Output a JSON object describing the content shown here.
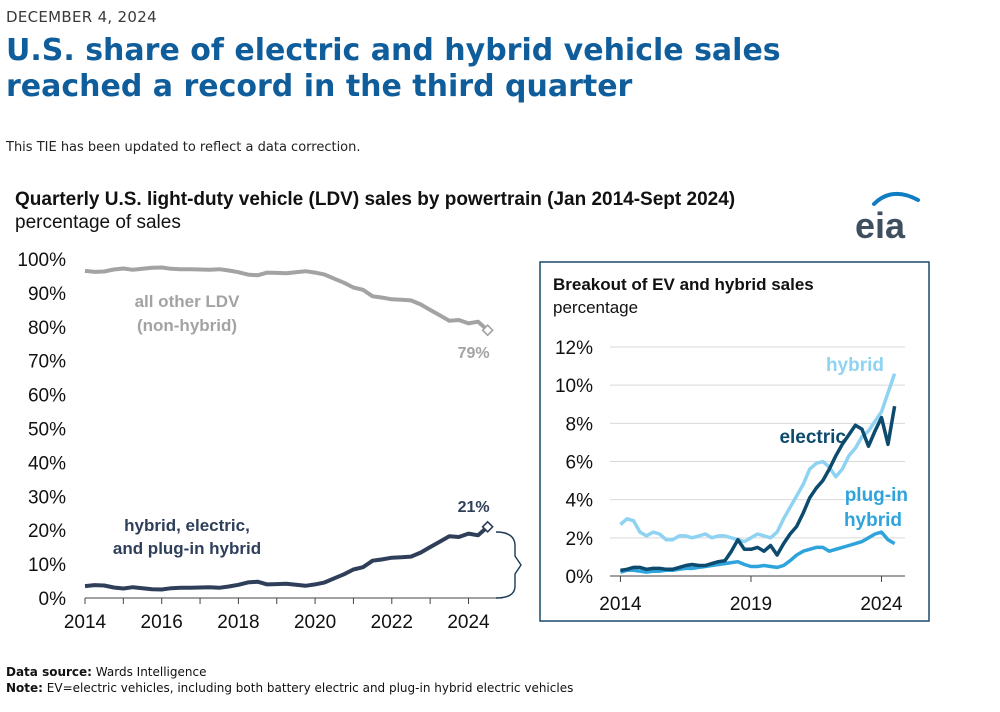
{
  "header": {
    "date": "DECEMBER 4, 2024",
    "headline": "U.S. share of electric and hybrid vehicle sales reached a record in the third quarter",
    "note": "This TIE has been updated to reflect a data correction."
  },
  "logo": {
    "text": "eia",
    "icon": "eia-logo"
  },
  "colors": {
    "gray_line": "#a3a3a3",
    "navy_line": "#2f3f59",
    "electric": "#0c4a6e",
    "hybrid": "#8fd3f2",
    "plugin": "#2fa4dc",
    "grid": "#d9d9d9",
    "headline": "#0f5d9a",
    "inset_border": "#1a4a6a"
  },
  "chart_data": [
    {
      "type": "line",
      "title": "Quarterly U.S. light-duty vehicle (LDV) sales by powertrain (Jan 2014-Sept 2024)",
      "ylabel": "percentage of sales",
      "xlabel": "",
      "xlim": [
        2014,
        2024.9
      ],
      "ylim": [
        0,
        100
      ],
      "y_ticks": [
        "0%",
        "10%",
        "20%",
        "30%",
        "40%",
        "50%",
        "60%",
        "70%",
        "80%",
        "90%",
        "100%"
      ],
      "x_ticks": [
        "2014",
        "2016",
        "2018",
        "2020",
        "2022",
        "2024"
      ],
      "grid": false,
      "series": [
        {
          "name": "all other LDV (non-hybrid)",
          "label_lines": [
            "all other LDV",
            "(non-hybrid)"
          ],
          "end_label": "79%",
          "x": [
            2014.0,
            2014.25,
            2014.5,
            2014.75,
            2015.0,
            2015.25,
            2015.5,
            2015.75,
            2016.0,
            2016.25,
            2016.5,
            2016.75,
            2017.0,
            2017.25,
            2017.5,
            2017.75,
            2018.0,
            2018.25,
            2018.5,
            2018.75,
            2019.0,
            2019.25,
            2019.5,
            2019.75,
            2020.0,
            2020.25,
            2020.5,
            2020.75,
            2021.0,
            2021.25,
            2021.5,
            2021.75,
            2022.0,
            2022.25,
            2022.5,
            2022.75,
            2023.0,
            2023.25,
            2023.5,
            2023.75,
            2024.0,
            2024.25,
            2024.5
          ],
          "values": [
            96.5,
            96.2,
            96.3,
            96.9,
            97.2,
            96.8,
            97.1,
            97.4,
            97.5,
            97.1,
            97.0,
            97.0,
            96.9,
            96.8,
            97.0,
            96.6,
            96.1,
            95.4,
            95.2,
            96.0,
            95.9,
            95.8,
            96.1,
            96.4,
            96.0,
            95.4,
            94.2,
            93.0,
            91.6,
            90.9,
            89.0,
            88.6,
            88.1,
            88.0,
            87.8,
            86.6,
            85.0,
            83.4,
            81.8,
            82.0,
            81.0,
            81.5,
            79.0
          ]
        },
        {
          "name": "hybrid, electric, and plug-in hybrid",
          "label_lines": [
            "hybrid, electric,",
            "and plug-in hybrid"
          ],
          "end_label": "21%",
          "x": [
            2014.0,
            2014.25,
            2014.5,
            2014.75,
            2015.0,
            2015.25,
            2015.5,
            2015.75,
            2016.0,
            2016.25,
            2016.5,
            2016.75,
            2017.0,
            2017.25,
            2017.5,
            2017.75,
            2018.0,
            2018.25,
            2018.5,
            2018.75,
            2019.0,
            2019.25,
            2019.5,
            2019.75,
            2020.0,
            2020.25,
            2020.5,
            2020.75,
            2021.0,
            2021.25,
            2021.5,
            2021.75,
            2022.0,
            2022.25,
            2022.5,
            2022.75,
            2023.0,
            2023.25,
            2023.5,
            2023.75,
            2024.0,
            2024.25,
            2024.5
          ],
          "values": [
            3.5,
            3.8,
            3.7,
            3.1,
            2.8,
            3.2,
            2.9,
            2.6,
            2.5,
            2.9,
            3.0,
            3.0,
            3.1,
            3.2,
            3.0,
            3.4,
            3.9,
            4.6,
            4.8,
            4.0,
            4.1,
            4.2,
            3.9,
            3.6,
            4.0,
            4.6,
            5.8,
            7.0,
            8.4,
            9.1,
            11.0,
            11.4,
            11.9,
            12.0,
            12.2,
            13.4,
            15.0,
            16.6,
            18.2,
            18.0,
            19.0,
            18.5,
            21.0
          ]
        }
      ]
    },
    {
      "type": "line",
      "title": "Breakout of EV and hybrid sales",
      "ylabel": "percentage",
      "xlabel": "",
      "xlim": [
        2013.6,
        2024.9
      ],
      "ylim": [
        0,
        12
      ],
      "y_ticks": [
        "0%",
        "2%",
        "4%",
        "6%",
        "8%",
        "10%",
        "12%"
      ],
      "x_ticks": [
        "2014",
        "2019",
        "2024"
      ],
      "grid": true,
      "series": [
        {
          "name": "hybrid",
          "x": [
            2014.0,
            2014.25,
            2014.5,
            2014.75,
            2015.0,
            2015.25,
            2015.5,
            2015.75,
            2016.0,
            2016.25,
            2016.5,
            2016.75,
            2017.0,
            2017.25,
            2017.5,
            2017.75,
            2018.0,
            2018.25,
            2018.5,
            2018.75,
            2019.0,
            2019.25,
            2019.5,
            2019.75,
            2020.0,
            2020.25,
            2020.5,
            2020.75,
            2021.0,
            2021.25,
            2021.5,
            2021.75,
            2022.0,
            2022.25,
            2022.5,
            2022.75,
            2023.0,
            2023.25,
            2023.5,
            2023.75,
            2024.0,
            2024.25,
            2024.5
          ],
          "values": [
            2.7,
            3.0,
            2.9,
            2.3,
            2.1,
            2.3,
            2.2,
            1.9,
            1.9,
            2.1,
            2.1,
            2.0,
            2.1,
            2.2,
            2.0,
            2.1,
            2.1,
            2.0,
            1.9,
            1.8,
            2.0,
            2.2,
            2.1,
            2.0,
            2.3,
            3.0,
            3.6,
            4.2,
            4.8,
            5.6,
            5.9,
            6.0,
            5.7,
            5.2,
            5.6,
            6.3,
            6.7,
            7.3,
            7.6,
            8.1,
            8.6,
            9.6,
            10.6
          ]
        },
        {
          "name": "electric",
          "x": [
            2014.0,
            2014.25,
            2014.5,
            2014.75,
            2015.0,
            2015.25,
            2015.5,
            2015.75,
            2016.0,
            2016.25,
            2016.5,
            2016.75,
            2017.0,
            2017.25,
            2017.5,
            2017.75,
            2018.0,
            2018.25,
            2018.5,
            2018.75,
            2019.0,
            2019.25,
            2019.5,
            2019.75,
            2020.0,
            2020.25,
            2020.5,
            2020.75,
            2021.0,
            2021.25,
            2021.5,
            2021.75,
            2022.0,
            2022.25,
            2022.5,
            2022.75,
            2023.0,
            2023.25,
            2023.5,
            2023.75,
            2024.0,
            2024.25,
            2024.5
          ],
          "values": [
            0.3,
            0.35,
            0.45,
            0.45,
            0.35,
            0.4,
            0.4,
            0.35,
            0.35,
            0.45,
            0.55,
            0.6,
            0.55,
            0.55,
            0.65,
            0.75,
            0.8,
            1.3,
            1.9,
            1.4,
            1.4,
            1.5,
            1.3,
            1.6,
            1.1,
            1.7,
            2.2,
            2.6,
            3.3,
            4.1,
            4.6,
            5.0,
            5.6,
            6.3,
            6.9,
            7.4,
            7.9,
            7.7,
            6.8,
            7.6,
            8.3,
            6.9,
            8.9
          ]
        },
        {
          "name": "plug-in hybrid",
          "label_lines": [
            "plug-in",
            "hybrid"
          ],
          "x": [
            2014.0,
            2014.25,
            2014.5,
            2014.75,
            2015.0,
            2015.25,
            2015.5,
            2015.75,
            2016.0,
            2016.25,
            2016.5,
            2016.75,
            2017.0,
            2017.25,
            2017.5,
            2017.75,
            2018.0,
            2018.25,
            2018.5,
            2018.75,
            2019.0,
            2019.25,
            2019.5,
            2019.75,
            2020.0,
            2020.25,
            2020.5,
            2020.75,
            2021.0,
            2021.25,
            2021.5,
            2021.75,
            2022.0,
            2022.25,
            2022.5,
            2022.75,
            2023.0,
            2023.25,
            2023.5,
            2023.75,
            2024.0,
            2024.25,
            2024.5
          ],
          "values": [
            0.2,
            0.3,
            0.3,
            0.25,
            0.2,
            0.25,
            0.25,
            0.3,
            0.3,
            0.35,
            0.4,
            0.4,
            0.45,
            0.5,
            0.55,
            0.6,
            0.65,
            0.7,
            0.75,
            0.6,
            0.5,
            0.5,
            0.55,
            0.5,
            0.45,
            0.55,
            0.8,
            1.1,
            1.3,
            1.4,
            1.5,
            1.5,
            1.3,
            1.4,
            1.5,
            1.6,
            1.7,
            1.8,
            2.0,
            2.2,
            2.3,
            1.9,
            1.7
          ]
        }
      ]
    }
  ],
  "footer": {
    "source_label": "Data source:",
    "source_text": "Wards Intelligence",
    "note_label": "Note:",
    "note_text": "EV=electric vehicles, including both battery electric and plug-in hybrid electric vehicles"
  }
}
